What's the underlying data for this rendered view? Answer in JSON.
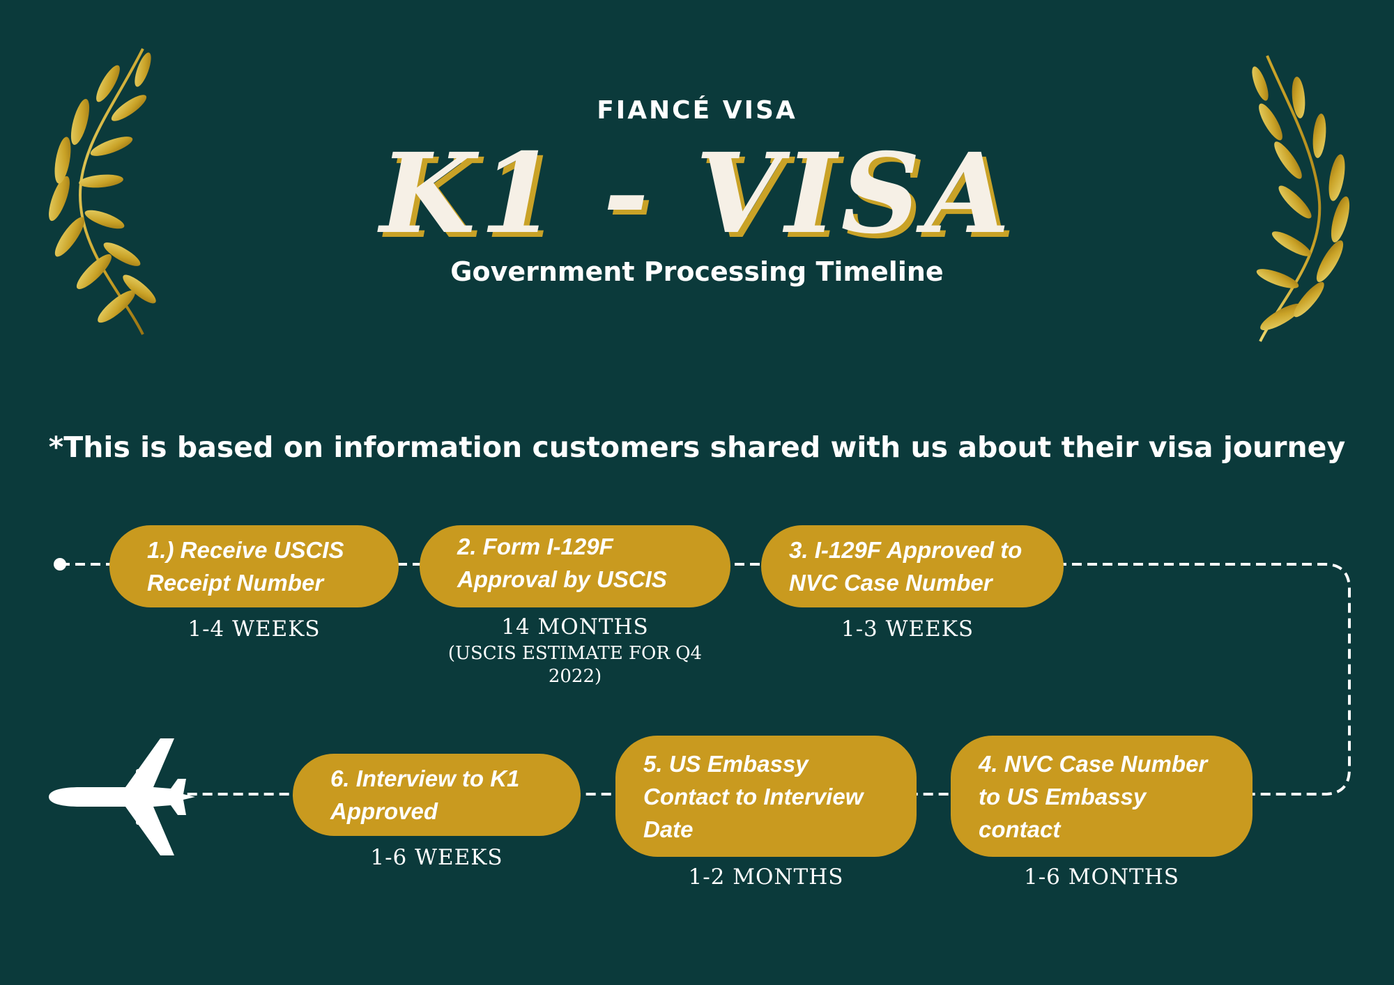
{
  "header": {
    "kicker": "FIANCÉ VISA",
    "title": "K1 - VISA",
    "subtitle": "Government Processing Timeline"
  },
  "note": "*This is based on information customers shared with us about their visa journey",
  "colors": {
    "background": "#0b3a3b",
    "step_fill": "#c99a1f",
    "title_text": "#f6f0e6",
    "title_shadow": "#c9a227",
    "leaf_gold": "#d4b23c"
  },
  "icons": {
    "left_decoration": "laurel-branch-icon",
    "right_decoration": "laurel-branch-icon",
    "timeline_start": "start-dot-icon",
    "timeline_end": "airplane-icon"
  },
  "steps": [
    {
      "label": "1.) Receive USCIS\nReceipt Number",
      "duration": "1-4 WEEKS"
    },
    {
      "label": "2. Form I-129F\nApproval by USCIS",
      "duration": "14 MONTHS",
      "duration_note": "(USCIS ESTIMATE FOR Q4\n2022)"
    },
    {
      "label": "3. I-129F Approved to\nNVC Case Number",
      "duration": "1-3 WEEKS"
    },
    {
      "label": "4. NVC Case Number\nto US Embassy\ncontact",
      "duration": "1-6 MONTHS"
    },
    {
      "label": "5. US Embassy\nContact to Interview\nDate",
      "duration": "1-2 MONTHS"
    },
    {
      "label": "6. Interview to K1\nApproved",
      "duration": "1-6 WEEKS"
    }
  ]
}
